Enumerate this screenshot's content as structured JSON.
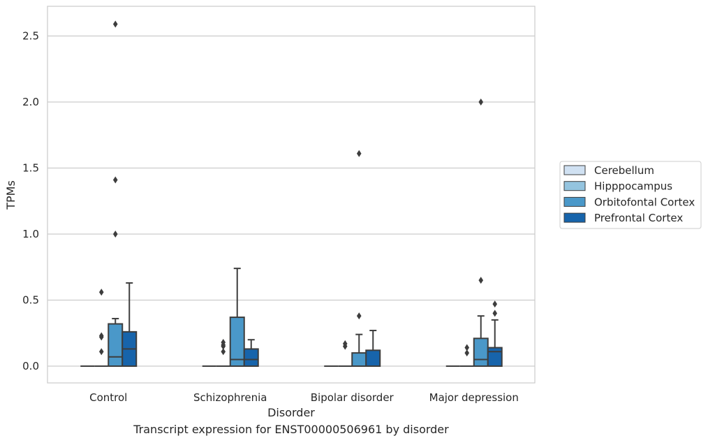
{
  "caption": "Transcript expression for ENST00000506961 by disorder",
  "chart_data": {
    "type": "box",
    "xlabel": "Disorder",
    "ylabel": "TPMs",
    "ylim": [
      -0.13,
      2.73
    ],
    "yticks": [
      0.0,
      0.5,
      1.0,
      1.5,
      2.0,
      2.5
    ],
    "ytick_labels": [
      "0.0",
      "0.5",
      "1.0",
      "1.5",
      "2.0",
      "2.5"
    ],
    "grid": "horizontal",
    "legend_position": "right",
    "categories": [
      "Control",
      "Schizophrenia",
      "Bipolar disorder",
      "Major depression"
    ],
    "series": [
      {
        "name": "Cerebellum",
        "color": "#d0e1f2",
        "boxes": [
          {
            "whislo": 0,
            "q1": 0,
            "med": 0,
            "q3": 0,
            "whishi": 0,
            "fliers": []
          },
          {
            "whislo": 0,
            "q1": 0,
            "med": 0,
            "q3": 0,
            "whishi": 0,
            "fliers": []
          },
          {
            "whislo": 0,
            "q1": 0,
            "med": 0,
            "q3": 0,
            "whishi": 0,
            "fliers": []
          },
          {
            "whislo": 0,
            "q1": 0,
            "med": 0,
            "q3": 0,
            "whishi": 0,
            "fliers": []
          }
        ]
      },
      {
        "name": "Hipppocampus",
        "color": "#94c4df",
        "boxes": [
          {
            "whislo": 0,
            "q1": 0,
            "med": 0,
            "q3": 0,
            "whishi": 0,
            "fliers": [
              0.11,
              0.22,
              0.23,
              0.56
            ]
          },
          {
            "whislo": 0,
            "q1": 0,
            "med": 0,
            "q3": 0,
            "whishi": 0,
            "fliers": [
              0.11,
              0.15,
              0.16,
              0.18
            ]
          },
          {
            "whislo": 0,
            "q1": 0,
            "med": 0,
            "q3": 0,
            "whishi": 0,
            "fliers": [
              0.15,
              0.17
            ]
          },
          {
            "whislo": 0,
            "q1": 0,
            "med": 0,
            "q3": 0,
            "whishi": 0,
            "fliers": [
              0.1,
              0.14
            ]
          }
        ]
      },
      {
        "name": "Orbitofontal Cortex",
        "color": "#4a98c9",
        "boxes": [
          {
            "whislo": 0,
            "q1": 0,
            "med": 0.07,
            "q3": 0.32,
            "whishi": 0.36,
            "fliers": [
              1.0,
              1.41,
              2.59
            ]
          },
          {
            "whislo": 0,
            "q1": 0,
            "med": 0.05,
            "q3": 0.37,
            "whishi": 0.74,
            "fliers": []
          },
          {
            "whislo": 0,
            "q1": 0,
            "med": 0,
            "q3": 0.1,
            "whishi": 0.24,
            "fliers": [
              0.38,
              1.61
            ]
          },
          {
            "whislo": 0,
            "q1": 0,
            "med": 0.05,
            "q3": 0.21,
            "whishi": 0.38,
            "fliers": [
              0.65,
              2.0
            ]
          }
        ]
      },
      {
        "name": "Prefrontal Cortex",
        "color": "#1764ab",
        "boxes": [
          {
            "whislo": 0,
            "q1": 0,
            "med": 0.13,
            "q3": 0.26,
            "whishi": 0.63,
            "fliers": []
          },
          {
            "whislo": 0,
            "q1": 0,
            "med": 0.05,
            "q3": 0.13,
            "whishi": 0.2,
            "fliers": []
          },
          {
            "whislo": 0,
            "q1": 0,
            "med": 0,
            "q3": 0.12,
            "whishi": 0.27,
            "fliers": []
          },
          {
            "whislo": 0,
            "q1": 0,
            "med": 0.11,
            "q3": 0.14,
            "whishi": 0.35,
            "fliers": [
              0.4,
              0.47
            ]
          }
        ]
      }
    ]
  }
}
